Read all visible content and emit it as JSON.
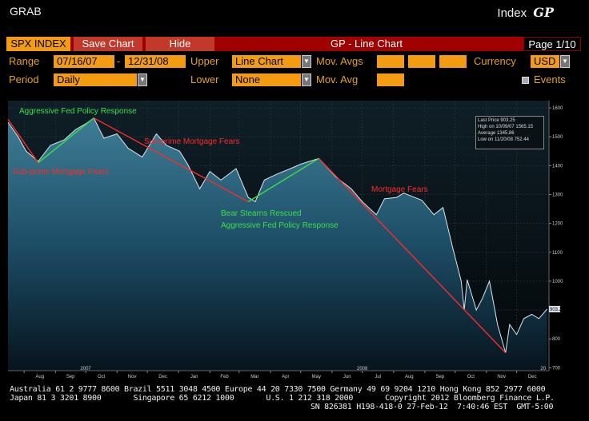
{
  "header": {
    "left": "GRAB",
    "right_label": "Index",
    "right_code": "GP"
  },
  "menubar": {
    "ticker": "SPX INDEX",
    "save": "Save Chart",
    "hide": "Hide",
    "title": "GP - Line Chart",
    "page": "Page 1/10"
  },
  "controls": {
    "range_label": "Range",
    "range_from": "07/16/07",
    "range_sep": "-",
    "range_to": "12/31/08",
    "upper_label": "Upper",
    "upper_value": "Line Chart",
    "mov_avgs_label": "Mov. Avgs",
    "currency_label": "Currency",
    "currency_value": "USD",
    "period_label": "Period",
    "period_value": "Daily",
    "lower_label": "Lower",
    "lower_value": "None",
    "mov_avg_label": "Mov. Avg",
    "events_label": "Events"
  },
  "legend": {
    "last_price": "Last Price   903.25",
    "high": "High on 10/09/07  1565.15",
    "average": "Average   1345.86",
    "low": "Low on 11/20/08   752.44"
  },
  "colors": {
    "accent": "#f39c12",
    "menubar": "#a00000",
    "trend_down": "#ff2a2a",
    "trend_up": "#38e04a"
  },
  "chart_data": {
    "type": "area",
    "title": "GP - Line Chart",
    "ylim": [
      690,
      1625
    ],
    "yticks": [
      1600,
      1500,
      1400,
      1300,
      1200,
      1100,
      1000,
      900,
      800,
      700
    ],
    "last_price_label": "903.25",
    "x_month_labels": [
      "Aug",
      "Sep",
      "Oct",
      "Nov",
      "Dec",
      "Jan",
      "Feb",
      "Mar",
      "Apr",
      "May",
      "Jun",
      "Jul",
      "Aug",
      "Sep",
      "Oct",
      "Nov",
      "Dec"
    ],
    "x_year_labels": [
      "2007",
      "2008",
      "20"
    ],
    "series": [
      {
        "x": [
          "2007-07-16",
          "2007-07-26",
          "2007-08-03",
          "2007-08-15",
          "2007-08-27",
          "2007-09-10",
          "2007-09-21",
          "2007-10-01",
          "2007-10-09",
          "2007-10-19",
          "2007-11-01",
          "2007-11-12",
          "2007-11-26",
          "2007-12-10",
          "2007-12-20",
          "2008-01-02",
          "2008-01-10",
          "2008-01-22",
          "2008-02-01",
          "2008-02-12",
          "2008-02-27",
          "2008-03-10",
          "2008-03-17",
          "2008-03-26",
          "2008-04-07",
          "2008-04-21",
          "2008-05-01",
          "2008-05-19",
          "2008-06-05",
          "2008-06-20",
          "2008-07-01",
          "2008-07-15",
          "2008-07-23",
          "2008-08-04",
          "2008-08-11",
          "2008-08-29",
          "2008-09-10",
          "2008-09-19",
          "2008-09-29",
          "2008-10-07",
          "2008-10-10",
          "2008-10-13",
          "2008-10-22",
          "2008-10-28",
          "2008-11-04",
          "2008-11-12",
          "2008-11-20",
          "2008-11-24",
          "2008-12-01",
          "2008-12-08",
          "2008-12-16",
          "2008-12-23",
          "2008-12-31"
        ],
        "y": [
          1550,
          1500,
          1450,
          1415,
          1470,
          1490,
          1525,
          1545,
          1565,
          1495,
          1510,
          1460,
          1430,
          1510,
          1470,
          1450,
          1405,
          1320,
          1380,
          1350,
          1390,
          1290,
          1275,
          1350,
          1370,
          1390,
          1405,
          1425,
          1360,
          1320,
          1275,
          1230,
          1285,
          1290,
          1305,
          1280,
          1230,
          1255,
          1110,
          1000,
          900,
          1005,
          900,
          940,
          1000,
          850,
          752,
          850,
          815,
          870,
          885,
          870,
          903
        ]
      }
    ],
    "annotations": [
      {
        "text": "Aggressive Fed Policy Response",
        "color": "#38e04a"
      },
      {
        "text": "Sub-prime Mortgage Fears",
        "color": "#ff2a2a"
      },
      {
        "text": "Sub-prime Mortgage Fears",
        "color": "#ff2a2a"
      },
      {
        "text": "Bear Stearns Rescued",
        "color": "#38e04a"
      },
      {
        "text": "Aggressive Fed Policy Response",
        "color": "#38e04a"
      },
      {
        "text": "Mortgage Fears",
        "color": "#ff2a2a"
      }
    ],
    "trendlines": [
      {
        "color": "#ff2a2a",
        "from": [
          "2007-07-16",
          1560
        ],
        "to": [
          "2007-08-15",
          1410
        ]
      },
      {
        "color": "#38e04a",
        "from": [
          "2007-08-15",
          1410
        ],
        "to": [
          "2007-10-09",
          1565
        ]
      },
      {
        "color": "#ff2a2a",
        "from": [
          "2007-10-09",
          1565
        ],
        "to": [
          "2008-03-10",
          1275
        ]
      },
      {
        "color": "#38e04a",
        "from": [
          "2008-03-10",
          1275
        ],
        "to": [
          "2008-05-19",
          1425
        ]
      },
      {
        "color": "#ff2a2a",
        "from": [
          "2008-05-19",
          1425
        ],
        "to": [
          "2008-11-20",
          752
        ]
      }
    ]
  },
  "footer": {
    "line1": "Australia 61 2 9777 8600 Brazil 5511 3048 4500 Europe 44 20 7330 7500 Germany 49 69 9204 1210 Hong Kong 852 2977 6000",
    "line2": "Japan 81 3 3201 8900       Singapore 65 6212 1000       U.S. 1 212 318 2000       Copyright 2012 Bloomberg Finance L.P.",
    "line3": "SN 826381 H198-418-0 27-Feb-12  7:40:46 EST  GMT-5:00"
  }
}
